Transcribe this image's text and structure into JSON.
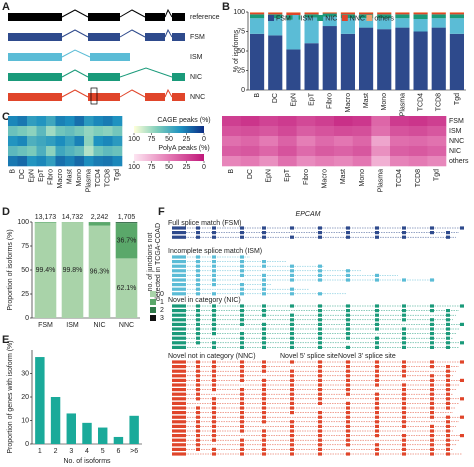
{
  "panel_letters": [
    "A",
    "B",
    "C",
    "D",
    "E",
    "F"
  ],
  "diagram_a": {
    "rows": [
      "reference",
      "FSM",
      "ISM",
      "NIC",
      "NNC"
    ]
  },
  "chart_data": [
    {
      "type": "stacked_bar",
      "ylabel": "% of isoforms",
      "categories": [
        "B",
        "DC",
        "EpN",
        "EpT",
        "Fibro",
        "Macro",
        "Mast",
        "Mono",
        "Plasma",
        "TCD4",
        "TCD8",
        "Tgd"
      ],
      "series": [
        {
          "name": "FSM",
          "color": "#2e4a8c",
          "values": [
            72,
            70,
            52,
            60,
            82,
            72,
            80,
            78,
            80,
            75,
            80,
            72
          ]
        },
        {
          "name": "ISM",
          "color": "#5bbcd6",
          "values": [
            20,
            22,
            38,
            33,
            12,
            20,
            12,
            14,
            12,
            16,
            12,
            20
          ]
        },
        {
          "name": "NIC",
          "color": "#1a9a7a",
          "values": [
            5,
            5,
            6,
            4,
            4,
            5,
            5,
            5,
            5,
            6,
            5,
            5
          ]
        },
        {
          "name": "NNC",
          "color": "#e0452a",
          "values": [
            2,
            2,
            3,
            2,
            1,
            2,
            2,
            2,
            2,
            2,
            2,
            2
          ]
        },
        {
          "name": "others",
          "color": "#f0a070",
          "values": [
            1,
            1,
            1,
            1,
            1,
            1,
            1,
            1,
            1,
            1,
            1,
            1
          ]
        }
      ],
      "ylim": [
        0,
        100
      ],
      "yticks": [
        0,
        25,
        50,
        75,
        100
      ],
      "legend": "top"
    },
    {
      "type": "heatmap",
      "colorbar_label": "CAGE peaks (%)",
      "colormap": [
        "#ffffd9",
        "#7fcdbb",
        "#1d91c0",
        "#0c2c84"
      ],
      "clim": [
        0,
        100
      ],
      "cticks": [
        0,
        25,
        50,
        75,
        100
      ],
      "columns": [
        "B",
        "DC",
        "EpN",
        "EpT",
        "Fibro",
        "Macro",
        "Mast",
        "Mono",
        "Plasma",
        "TCD4",
        "TCD8",
        "Tgd"
      ],
      "values": [
        [
          70,
          75,
          60,
          65,
          55,
          72,
          68,
          78,
          62,
          70,
          74,
          66
        ],
        [
          40,
          35,
          30,
          45,
          25,
          38,
          42,
          36,
          28,
          33,
          30,
          37
        ],
        [
          65,
          70,
          50,
          55,
          60,
          68,
          58,
          72,
          30,
          66,
          70,
          62
        ],
        [
          45,
          40,
          35,
          50,
          30,
          55,
          48,
          42,
          20,
          38,
          44,
          40
        ],
        [
          75,
          80,
          65,
          70,
          60,
          78,
          72,
          80,
          68,
          74,
          76,
          70
        ]
      ]
    },
    {
      "type": "heatmap",
      "colorbar_label": "PolyA peaks (%)",
      "colormap": [
        "#fde6f2",
        "#e47ab4",
        "#c0187a"
      ],
      "clim": [
        0,
        100
      ],
      "cticks": [
        0,
        25,
        50,
        75,
        100
      ],
      "rows": [
        "FSM",
        "ISM",
        "NNC",
        "NIC",
        "others"
      ],
      "columns": [
        "B",
        "DC",
        "EpN",
        "EpT",
        "Fibro",
        "Macro",
        "Mast",
        "Mono",
        "Plasma",
        "TCD4",
        "TCD8",
        "Tgd"
      ],
      "values": [
        [
          80,
          85,
          78,
          82,
          75,
          80,
          88,
          84,
          60,
          82,
          85,
          80
        ],
        [
          70,
          72,
          68,
          75,
          65,
          70,
          74,
          72,
          55,
          70,
          73,
          68
        ],
        [
          55,
          60,
          50,
          62,
          48,
          58,
          52,
          60,
          30,
          56,
          58,
          54
        ],
        [
          65,
          68,
          60,
          70,
          58,
          66,
          62,
          68,
          40,
          64,
          67,
          62
        ],
        [
          45,
          50,
          40,
          55,
          42,
          48,
          44,
          52,
          25,
          46,
          50,
          44
        ]
      ]
    },
    {
      "type": "stacked_bar",
      "ylabel": "Proportion of isoforms (%)",
      "categories": [
        "FSM",
        "ISM",
        "NIC",
        "NNC"
      ],
      "count_labels": [
        "13,173",
        "14,732",
        "2,242",
        "1,705"
      ],
      "legend_title": [
        "no. of junctions not",
        "detected in TCGA-COAD"
      ],
      "series": [
        {
          "name": "0",
          "color": "#a9d3a9",
          "values": [
            99.4,
            99.8,
            96.3,
            62.1
          ],
          "value_labels": [
            "99.4%",
            "99.8%",
            "96.3%",
            "62.1%"
          ]
        },
        {
          "name": "1",
          "color": "#5aa86a",
          "values": [
            0.6,
            0.2,
            3.5,
            36.7
          ],
          "value_labels": [
            null,
            null,
            null,
            "36.7%"
          ]
        },
        {
          "name": "2",
          "color": "#2f7a4a",
          "values": [
            0,
            0,
            0.2,
            1.0
          ]
        },
        {
          "name": "3",
          "color": "#111111",
          "values": [
            0,
            0,
            0,
            0.2
          ]
        }
      ],
      "ylim": [
        0,
        100
      ],
      "yticks": [
        0,
        25,
        50,
        75,
        100
      ],
      "legend": "right"
    },
    {
      "type": "bar",
      "ylabel": "Proportion of genes with isoform (%)",
      "xlabel": "No. of isoforms",
      "categories": [
        "1",
        "2",
        "3",
        "4",
        "5",
        "6",
        ">6"
      ],
      "values": [
        37,
        20,
        13,
        9,
        7,
        3,
        12
      ],
      "color": "#1aaa9a",
      "ylim": [
        0,
        40
      ],
      "yticks": [
        0,
        10,
        20,
        30
      ]
    }
  ],
  "panel_f": {
    "gene": "EPCAM",
    "groups": [
      "Full splice match (FSM)",
      "Incomplete splice match (ISM)",
      "Novel in category (NIC)",
      "Novel not in category (NNC)"
    ],
    "markers": [
      "Novel 5' splice site",
      "Novel 3' splice site"
    ]
  }
}
